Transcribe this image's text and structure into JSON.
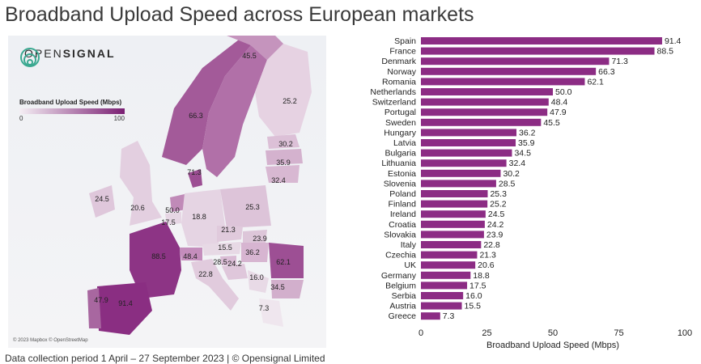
{
  "title": "Broadband Upload Speed across European markets",
  "logo": {
    "prefix": "OPEN",
    "suffix": "SIGNAL"
  },
  "legend": {
    "title": "Broadband Upload Speed (Mbps)",
    "min_label": "0",
    "max_label": "100",
    "color_low": "#f5eff4",
    "color_high": "#7a1f73"
  },
  "map_credit": "© 2023 Mapbox © OpenStreetMap",
  "footer": "Data collection period 1 April – 27 September 2023  |  © Opensignal Limited",
  "map_labels": [
    "45.5",
    "25.2",
    "66.3",
    "30.2",
    "35.9",
    "71.3",
    "32.4",
    "24.5",
    "20.6",
    "50.0",
    "17.5",
    "18.8",
    "25.3",
    "21.3",
    "23.9",
    "15.5",
    "36.2",
    "88.5",
    "48.4",
    "28.5",
    "24.2",
    "62.1",
    "22.8",
    "16.0",
    "34.5",
    "47.9",
    "91.4",
    "7.3"
  ],
  "colors": {
    "bar": "#8c2c84",
    "accent": "#7a1f73"
  },
  "chart_data": {
    "type": "bar",
    "orientation": "horizontal",
    "categories": [
      "Spain",
      "France",
      "Denmark",
      "Norway",
      "Romania",
      "Netherlands",
      "Switzerland",
      "Portugal",
      "Sweden",
      "Hungary",
      "Latvia",
      "Bulgaria",
      "Lithuania",
      "Estonia",
      "Slovenia",
      "Poland",
      "Finland",
      "Ireland",
      "Croatia",
      "Slovakia",
      "Italy",
      "Czechia",
      "UK",
      "Germany",
      "Belgium",
      "Serbia",
      "Austria",
      "Greece"
    ],
    "values": [
      91.4,
      88.5,
      71.3,
      66.3,
      62.1,
      50.0,
      48.4,
      47.9,
      45.5,
      36.2,
      35.9,
      34.5,
      32.4,
      30.2,
      28.5,
      25.3,
      25.2,
      24.5,
      24.2,
      23.9,
      22.8,
      21.3,
      20.6,
      18.8,
      17.5,
      16.0,
      15.5,
      7.3
    ],
    "value_labels": [
      "91.4",
      "88.5",
      "71.3",
      "66.3",
      "62.1",
      "50.0",
      "48.4",
      "47.9",
      "45.5",
      "36.2",
      "35.9",
      "34.5",
      "32.4",
      "30.2",
      "28.5",
      "25.3",
      "25.2",
      "24.5",
      "24.2",
      "23.9",
      "22.8",
      "21.3",
      "20.6",
      "18.8",
      "17.5",
      "16.0",
      "15.5",
      "7.3"
    ],
    "xlabel": "Broadband Upload Speed (Mbps)",
    "xlim": [
      0,
      100
    ],
    "xticks": [
      "0",
      "25",
      "50",
      "75",
      "100"
    ],
    "grid": false
  }
}
